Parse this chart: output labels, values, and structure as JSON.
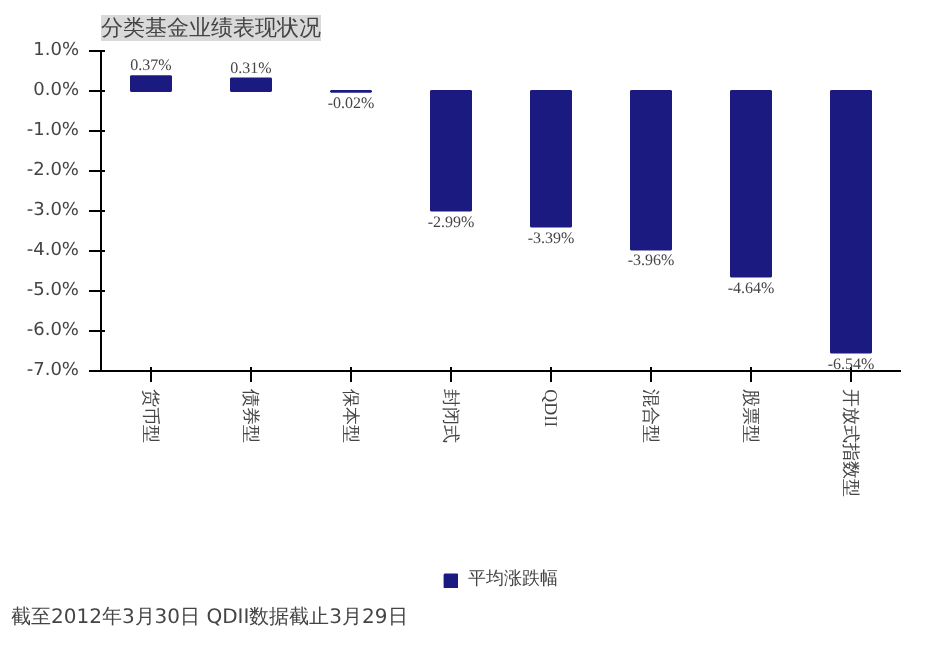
{
  "chart_data": {
    "type": "bar",
    "title": "分类基金业绩表现状况",
    "categories": [
      "货币型",
      "债券型",
      "保本型",
      "封闭式",
      "QDII",
      "混合型",
      "股票型",
      "开放式指数型"
    ],
    "series": [
      {
        "name": "平均涨跌幅",
        "color": "#1a1a80",
        "values": [
          0.37,
          0.31,
          -0.02,
          -2.99,
          -3.39,
          -3.96,
          -4.64,
          -6.54
        ]
      }
    ],
    "value_labels": [
      "0.37%",
      "0.31%",
      "-0.02%",
      "-2.99%",
      "-3.39%",
      "-3.96%",
      "-4.64%",
      "-6.54%"
    ],
    "ylim": [
      -7,
      1
    ],
    "yticks": [
      {
        "value": 1,
        "label": "1.0%"
      },
      {
        "value": 0,
        "label": "0.0%"
      },
      {
        "value": -1,
        "label": "-1.0%"
      },
      {
        "value": -2,
        "label": "-2.0%"
      },
      {
        "value": -3,
        "label": "-3.0%"
      },
      {
        "value": -4,
        "label": "-4.0%"
      },
      {
        "value": -5,
        "label": "-5.0%"
      },
      {
        "value": -6,
        "label": "-6.0%"
      },
      {
        "value": -7,
        "label": "-7.0%"
      }
    ],
    "grid": false,
    "legend": "bottom",
    "annotations": [
      "截至2012年3月30日  QDII数据截止3月29日"
    ]
  }
}
